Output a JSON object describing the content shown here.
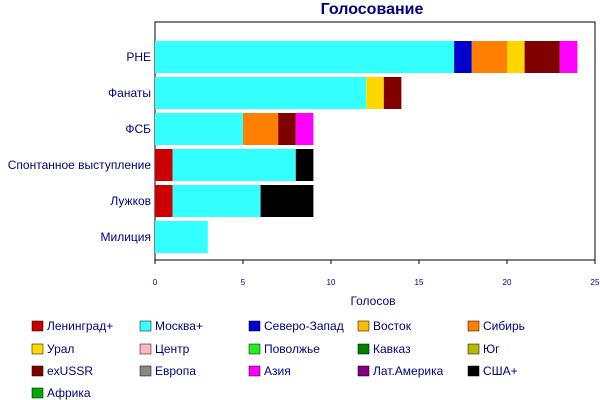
{
  "chart_data": {
    "type": "bar",
    "orientation": "horizontal",
    "stacked": true,
    "title": "Голосование",
    "xlabel": "Голосов",
    "ylabel": "",
    "xlim": [
      0,
      25
    ],
    "xticks": [
      "0",
      "5",
      "10",
      "15",
      "20",
      "25"
    ],
    "grid": false,
    "legend_position": "bottom",
    "categories": [
      "РНЕ",
      "Фанаты",
      "ФСБ",
      "Спонтанное выступление",
      "Лужков",
      "Милиция"
    ],
    "series": [
      {
        "name": "Ленинград+",
        "color": "#cc0000",
        "values": [
          0,
          0,
          0,
          1,
          1,
          0
        ]
      },
      {
        "name": "Москва+",
        "color": "#33ffff",
        "values": [
          17,
          12,
          5,
          7,
          5,
          3
        ]
      },
      {
        "name": "Северо-Запад",
        "color": "#0000cc",
        "values": [
          1,
          0,
          0,
          0,
          0,
          0
        ]
      },
      {
        "name": "Восток",
        "color": "#ffbb00",
        "values": [
          0,
          0,
          0,
          0,
          0,
          0
        ]
      },
      {
        "name": "Сибирь",
        "color": "#ff8000",
        "values": [
          2,
          0,
          2,
          0,
          0,
          0
        ]
      },
      {
        "name": "Урал",
        "color": "#ffd700",
        "values": [
          1,
          1,
          0,
          0,
          0,
          0
        ]
      },
      {
        "name": "Центр",
        "color": "#ffb6c1",
        "values": [
          0,
          0,
          0,
          0,
          0,
          0
        ]
      },
      {
        "name": "Поволжье",
        "color": "#22ee22",
        "values": [
          0,
          0,
          0,
          0,
          0,
          0
        ]
      },
      {
        "name": "Кавказ",
        "color": "#008000",
        "values": [
          0,
          0,
          0,
          0,
          0,
          0
        ]
      },
      {
        "name": "Юг",
        "color": "#b8b800",
        "values": [
          0,
          0,
          0,
          0,
          0,
          0
        ]
      },
      {
        "name": "exUSSR",
        "color": "#800000",
        "values": [
          2,
          1,
          1,
          0,
          0,
          0
        ]
      },
      {
        "name": "Европа",
        "color": "#888888",
        "values": [
          0,
          0,
          0,
          0,
          0,
          0
        ]
      },
      {
        "name": "Азия",
        "color": "#ff00ff",
        "values": [
          1,
          0,
          1,
          0,
          0,
          0
        ]
      },
      {
        "name": "Лат.Америка",
        "color": "#800080",
        "values": [
          0,
          0,
          0,
          0,
          0,
          0
        ]
      },
      {
        "name": "США+",
        "color": "#000000",
        "values": [
          0,
          0,
          0,
          1,
          3,
          0
        ]
      },
      {
        "name": "Африка",
        "color": "#00aa00",
        "values": [
          0,
          0,
          0,
          0,
          0,
          0
        ]
      }
    ]
  }
}
